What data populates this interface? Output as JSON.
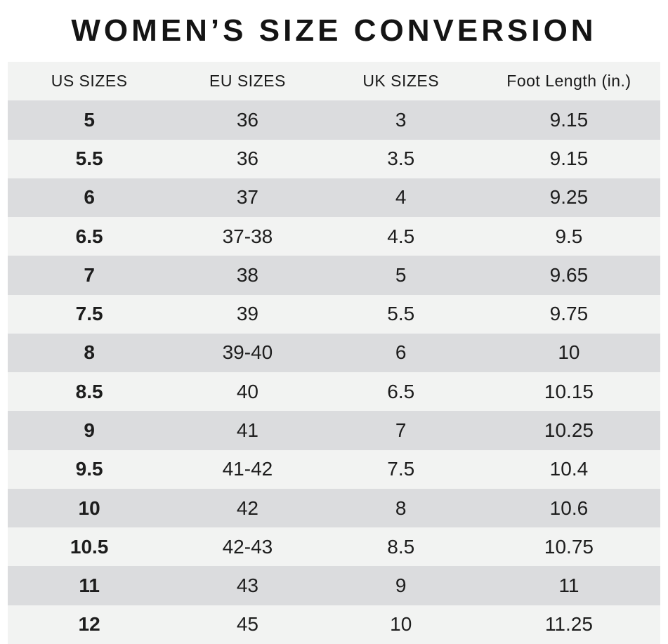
{
  "title": "WOMEN’S SIZE CONVERSION",
  "colors": {
    "background": "#ffffff",
    "row_dark": "#dbdcde",
    "row_light": "#f2f3f2",
    "header_background": "#f2f3f2",
    "text": "#1d1d1d"
  },
  "chart_data": {
    "type": "table",
    "title": "WOMEN’S SIZE CONVERSION",
    "columns": [
      "US SIZES",
      "EU SIZES",
      "UK SIZES",
      "Foot Length (in.)"
    ],
    "rows": [
      [
        "5",
        "36",
        "3",
        "9.15"
      ],
      [
        "5.5",
        "36",
        "3.5",
        "9.15"
      ],
      [
        "6",
        "37",
        "4",
        "9.25"
      ],
      [
        "6.5",
        "37-38",
        "4.5",
        "9.5"
      ],
      [
        "7",
        "38",
        "5",
        "9.65"
      ],
      [
        "7.5",
        "39",
        "5.5",
        "9.75"
      ],
      [
        "8",
        "39-40",
        "6",
        "10"
      ],
      [
        "8.5",
        "40",
        "6.5",
        "10.15"
      ],
      [
        "9",
        "41",
        "7",
        "10.25"
      ],
      [
        "9.5",
        "41-42",
        "7.5",
        "10.4"
      ],
      [
        "10",
        "42",
        "8",
        "10.6"
      ],
      [
        "10.5",
        "42-43",
        "8.5",
        "10.75"
      ],
      [
        "11",
        "43",
        "9",
        "11"
      ],
      [
        "12",
        "45",
        "10",
        "11.25"
      ]
    ],
    "layout": {
      "alternating_row_shading": true,
      "first_data_row_shade": "dark",
      "us_column_bold": true
    }
  }
}
